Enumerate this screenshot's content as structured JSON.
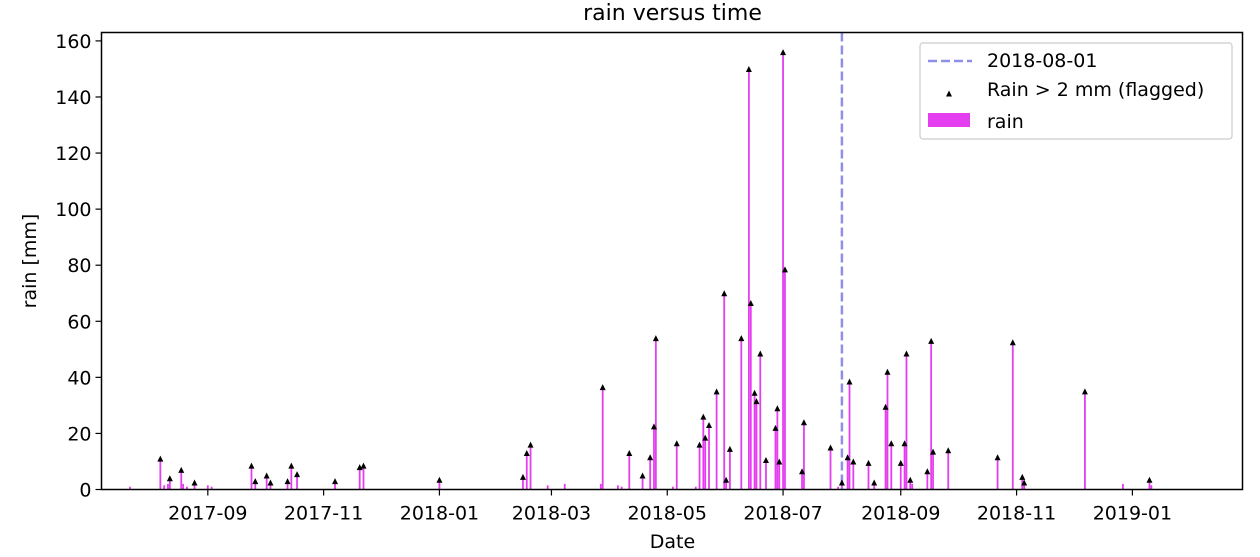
{
  "chart_data": {
    "type": "bar",
    "title": "rain versus time",
    "xlabel": "Date",
    "ylabel": "rain [mm]",
    "x_range": [
      "2017-07-07",
      "2019-02-28"
    ],
    "ylim": [
      0,
      163
    ],
    "y_ticks": [
      0,
      20,
      40,
      60,
      80,
      100,
      120,
      140,
      160
    ],
    "x_ticks": [
      "2017-09",
      "2017-11",
      "2018-01",
      "2018-03",
      "2018-05",
      "2018-07",
      "2018-09",
      "2018-11",
      "2019-01"
    ],
    "grid": false,
    "legend_position": "top-right",
    "colors": {
      "rain": "#e53ef0",
      "marker": "#000000",
      "vline": "#8f8fe8"
    },
    "vline": {
      "date": "2018-08-01",
      "label": "2018-08-01"
    },
    "legend": [
      "2018-08-01",
      "Rain > 2 mm (flagged)",
      "rain"
    ],
    "series": [
      {
        "name": "rain",
        "points": [
          [
            "2017-07-22",
            1
          ],
          [
            "2017-08-07",
            11
          ],
          [
            "2017-08-09",
            1.5
          ],
          [
            "2017-08-11",
            2
          ],
          [
            "2017-08-12",
            4
          ],
          [
            "2017-08-18",
            7
          ],
          [
            "2017-08-19",
            2
          ],
          [
            "2017-08-21",
            1
          ],
          [
            "2017-08-25",
            2.5
          ],
          [
            "2017-09-01",
            1.5
          ],
          [
            "2017-09-03",
            1
          ],
          [
            "2017-09-24",
            8.5
          ],
          [
            "2017-09-26",
            3
          ],
          [
            "2017-10-02",
            5
          ],
          [
            "2017-10-04",
            2.5
          ],
          [
            "2017-10-13",
            3
          ],
          [
            "2017-10-15",
            8.5
          ],
          [
            "2017-10-18",
            5.5
          ],
          [
            "2017-11-07",
            3
          ],
          [
            "2017-11-20",
            8
          ],
          [
            "2017-11-22",
            8.5
          ],
          [
            "2018-01-01",
            3.5
          ],
          [
            "2018-02-14",
            4.5
          ],
          [
            "2018-02-16",
            13
          ],
          [
            "2018-02-18",
            16
          ],
          [
            "2018-02-27",
            1.5
          ],
          [
            "2018-03-08",
            2
          ],
          [
            "2018-03-27",
            2
          ],
          [
            "2018-03-28",
            36.5
          ],
          [
            "2018-04-05",
            1.5
          ],
          [
            "2018-04-07",
            1
          ],
          [
            "2018-04-11",
            13
          ],
          [
            "2018-04-18",
            5
          ],
          [
            "2018-04-22",
            11.5
          ],
          [
            "2018-04-24",
            22.5
          ],
          [
            "2018-04-25",
            54
          ],
          [
            "2018-05-04",
            1
          ],
          [
            "2018-05-06",
            16.5
          ],
          [
            "2018-05-16",
            1
          ],
          [
            "2018-05-18",
            16
          ],
          [
            "2018-05-20",
            26
          ],
          [
            "2018-05-21",
            18.5
          ],
          [
            "2018-05-23",
            23
          ],
          [
            "2018-05-27",
            35
          ],
          [
            "2018-05-31",
            70
          ],
          [
            "2018-06-01",
            3.5
          ],
          [
            "2018-06-03",
            14.5
          ],
          [
            "2018-06-09",
            54
          ],
          [
            "2018-06-13",
            150
          ],
          [
            "2018-06-14",
            66.5
          ],
          [
            "2018-06-16",
            34.5
          ],
          [
            "2018-06-17",
            31.5
          ],
          [
            "2018-06-19",
            48.5
          ],
          [
            "2018-06-22",
            10.5
          ],
          [
            "2018-06-27",
            22
          ],
          [
            "2018-06-28",
            29
          ],
          [
            "2018-06-29",
            10
          ],
          [
            "2018-07-01",
            156
          ],
          [
            "2018-07-02",
            78.5
          ],
          [
            "2018-07-11",
            6.5
          ],
          [
            "2018-07-12",
            24
          ],
          [
            "2018-07-26",
            15
          ],
          [
            "2018-07-30",
            1
          ],
          [
            "2018-08-01",
            2.5
          ],
          [
            "2018-08-04",
            11.5
          ],
          [
            "2018-08-05",
            38.5
          ],
          [
            "2018-08-07",
            10
          ],
          [
            "2018-08-15",
            9.5
          ],
          [
            "2018-08-18",
            2.5
          ],
          [
            "2018-08-24",
            29.5
          ],
          [
            "2018-08-25",
            42
          ],
          [
            "2018-08-27",
            16.5
          ],
          [
            "2018-09-01",
            9.5
          ],
          [
            "2018-09-03",
            16.5
          ],
          [
            "2018-09-04",
            48.5
          ],
          [
            "2018-09-06",
            3.5
          ],
          [
            "2018-09-07",
            2
          ],
          [
            "2018-09-15",
            6.5
          ],
          [
            "2018-09-17",
            53
          ],
          [
            "2018-09-18",
            13.5
          ],
          [
            "2018-09-26",
            14
          ],
          [
            "2018-10-22",
            11.5
          ],
          [
            "2018-10-30",
            52.5
          ],
          [
            "2018-11-04",
            4.5
          ],
          [
            "2018-11-05",
            2.5
          ],
          [
            "2018-12-07",
            35
          ],
          [
            "2018-12-27",
            2
          ],
          [
            "2019-01-10",
            3.5
          ],
          [
            "2019-01-11",
            1.5
          ]
        ]
      }
    ]
  }
}
